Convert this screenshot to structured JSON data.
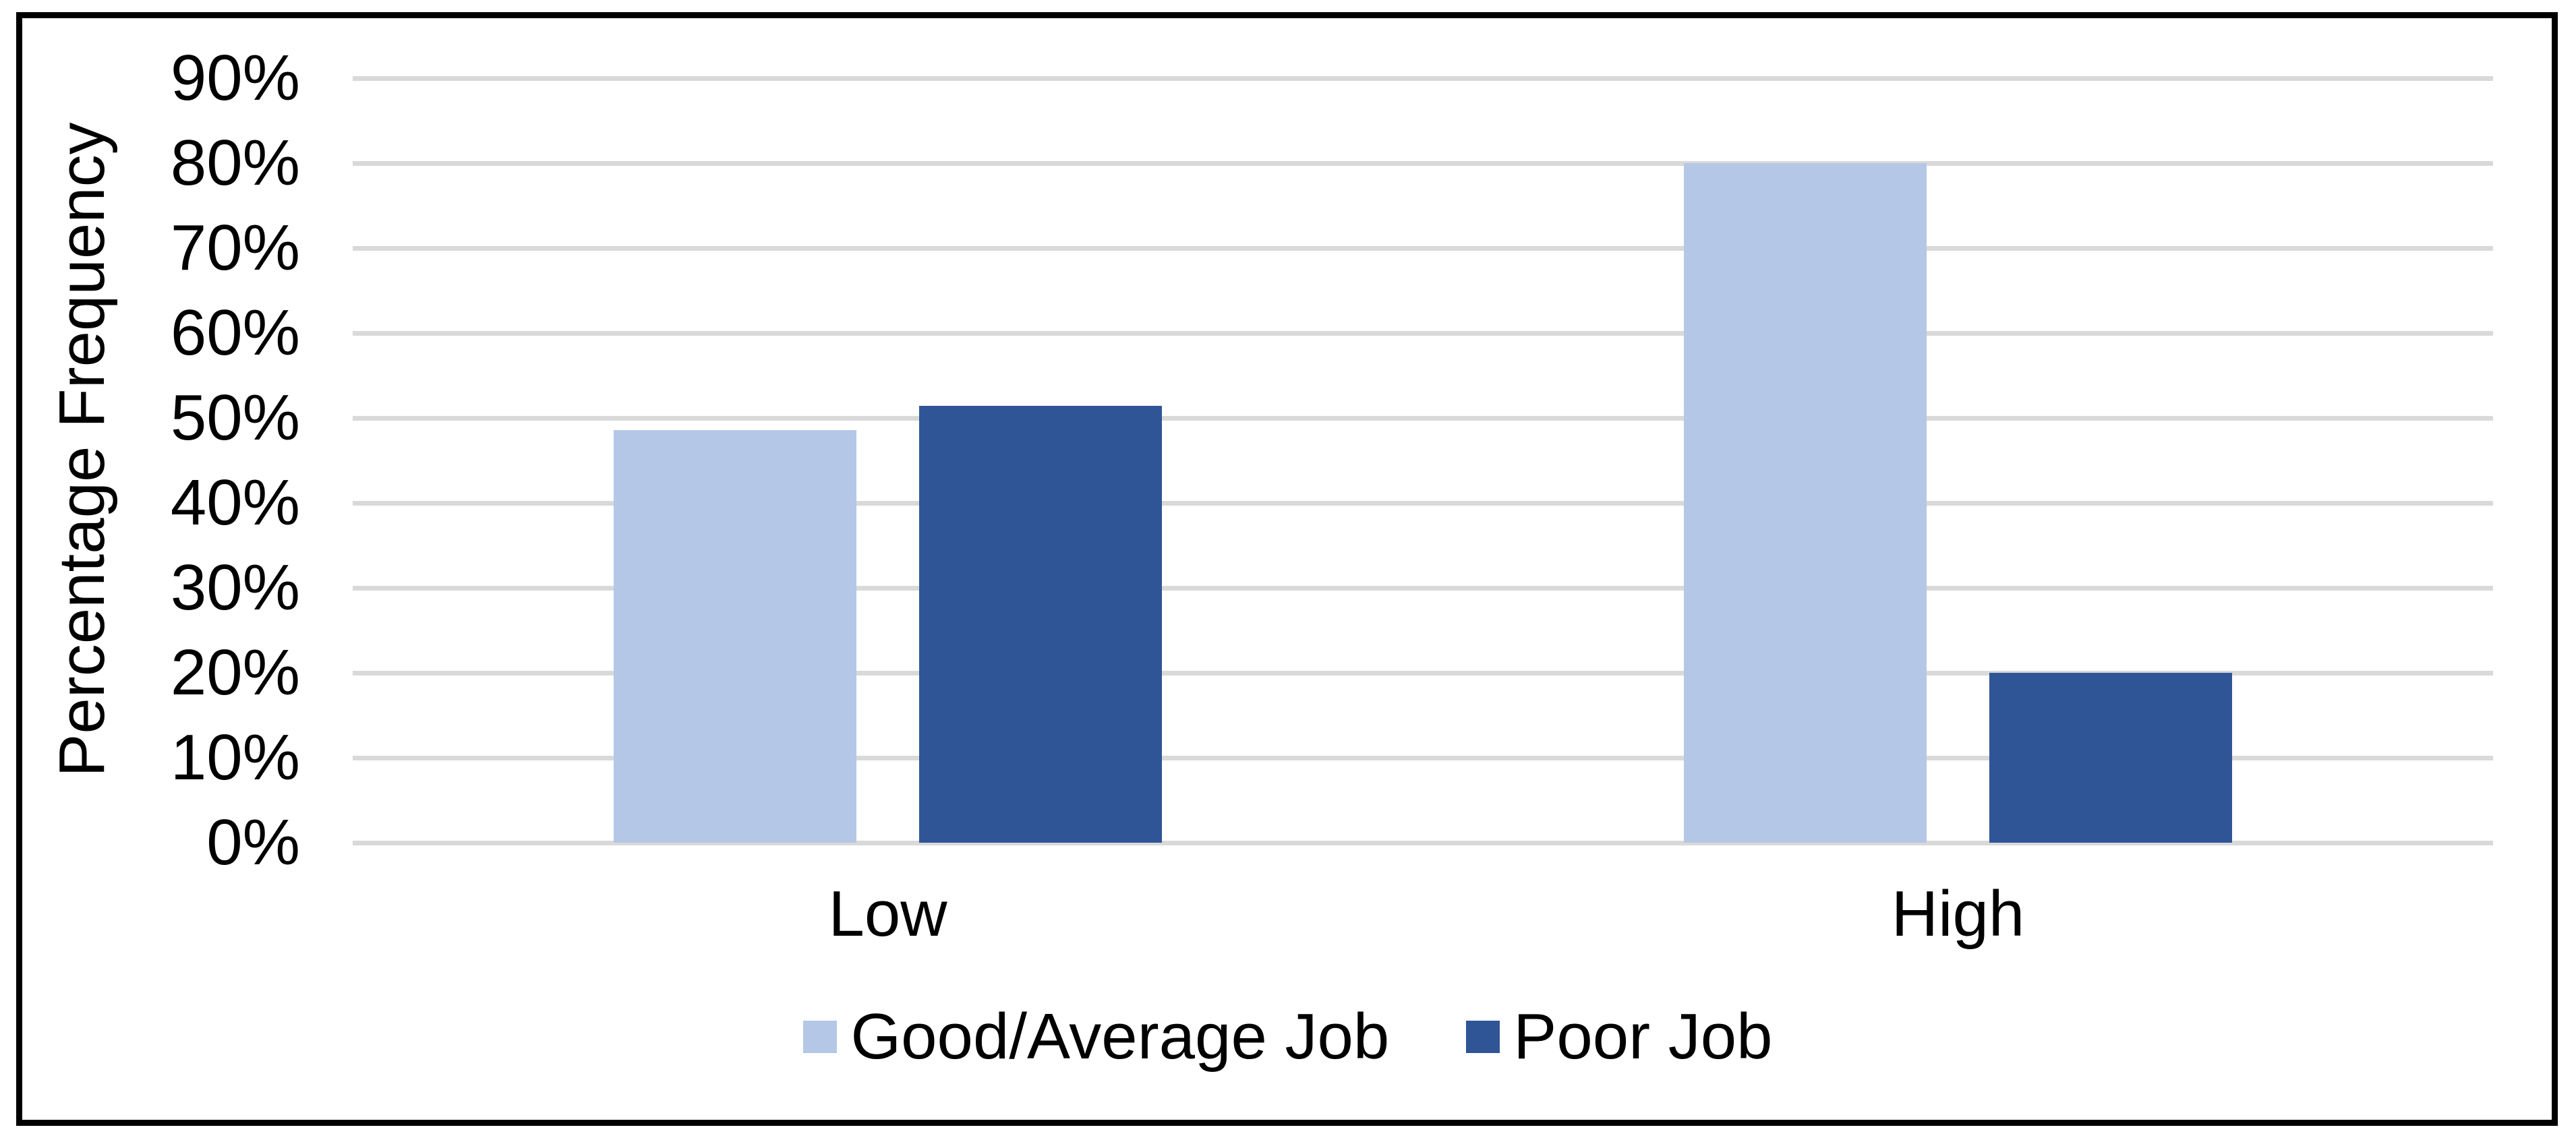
{
  "figure": {
    "background_color": "#FFFFFF",
    "border_color": "#000000"
  },
  "chart_data": {
    "type": "bar",
    "title": "",
    "categories": [
      "Low",
      "High"
    ],
    "series": [
      {
        "name": "Good/Average Job",
        "color": "#B4C7E7",
        "values": [
          48.6,
          80
        ]
      },
      {
        "name": "Poor Job",
        "color": "#2F5597",
        "values": [
          51.4,
          20
        ]
      }
    ],
    "xlabel": "",
    "ylabel": "Percentage Frequency",
    "ylim": [
      0,
      90
    ],
    "y_tick_labels": [
      "0%",
      "10%",
      "20%",
      "30%",
      "40%",
      "50%",
      "60%",
      "70%",
      "80%",
      "90%"
    ],
    "grid": "horizontal",
    "gridline_color": "#D9D9D9",
    "legend_position": "bottom",
    "text_color": "#000000"
  }
}
